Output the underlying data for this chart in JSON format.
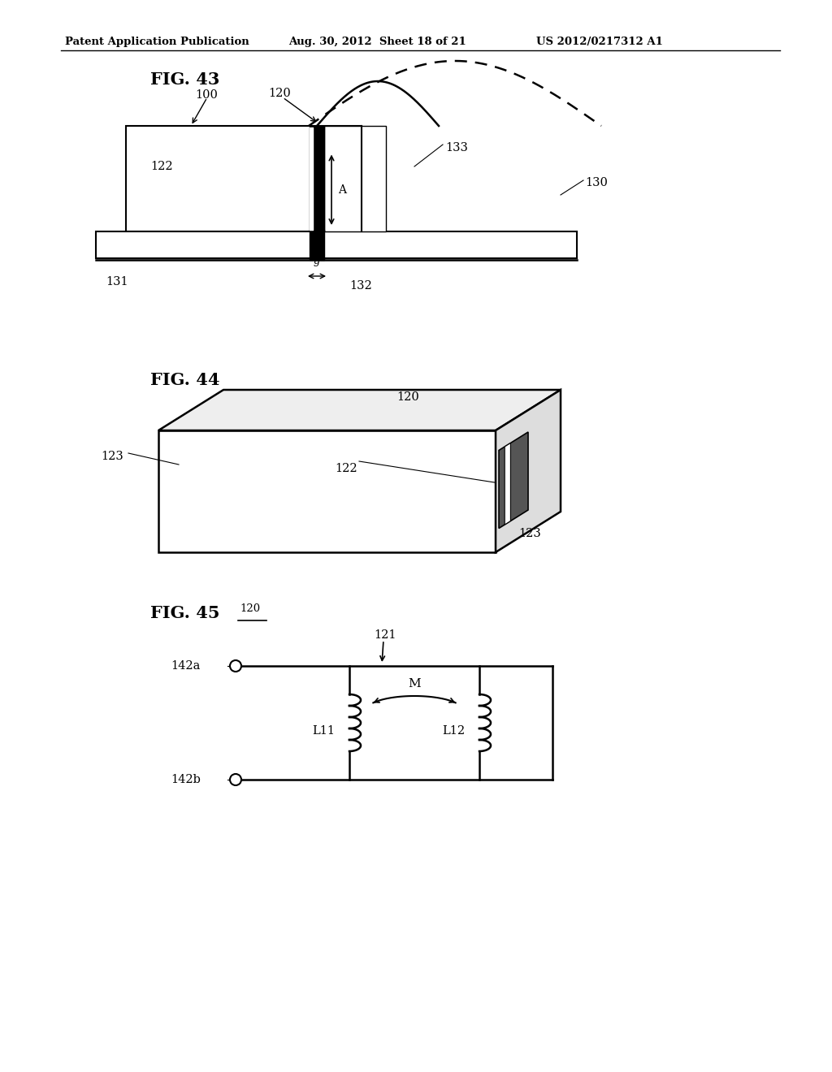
{
  "bg_color": "#ffffff",
  "header_text": "Patent Application Publication",
  "header_date": "Aug. 30, 2012  Sheet 18 of 21",
  "header_patent": "US 2012/0217312 A1",
  "fig43_title": "FIG. 43",
  "fig44_title": "FIG. 44",
  "fig45_title": "FIG. 45",
  "fig45_sub": "120"
}
